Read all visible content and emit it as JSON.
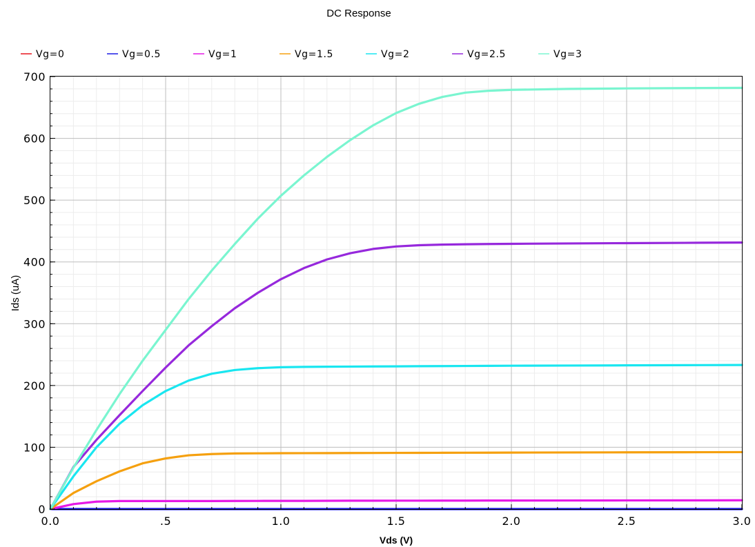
{
  "chart_data": {
    "type": "line",
    "title": "DC Response",
    "xlabel": "Vds (V)",
    "ylabel": "Ids (uA)",
    "xlim": [
      0,
      3.0
    ],
    "ylim": [
      0,
      700
    ],
    "grid": true,
    "legend_position": "top",
    "x_ticks": [
      "0.0",
      ".5",
      "1.0",
      "1.5",
      "2.0",
      "2.5",
      "3.0"
    ],
    "x_tick_values": [
      0,
      0.5,
      1.0,
      1.5,
      2.0,
      2.5,
      3.0
    ],
    "y_ticks": [
      "0",
      "100",
      "200",
      "300",
      "400",
      "500",
      "600",
      "700"
    ],
    "y_tick_values": [
      0,
      100,
      200,
      300,
      400,
      500,
      600,
      700
    ],
    "x": [
      0,
      0.1,
      0.2,
      0.3,
      0.4,
      0.5,
      0.6,
      0.7,
      0.8,
      0.9,
      1.0,
      1.1,
      1.2,
      1.3,
      1.4,
      1.5,
      1.6,
      1.7,
      1.8,
      1.9,
      2.0,
      2.25,
      2.5,
      2.75,
      3.0
    ],
    "series": [
      {
        "name": "Vg=0",
        "color": "#e8141e",
        "draw": false,
        "values": [
          0,
          0,
          0,
          0,
          0,
          0,
          0,
          0,
          0,
          0,
          0,
          0,
          0,
          0,
          0,
          0,
          0,
          0,
          0,
          0,
          0,
          0,
          0,
          0,
          0
        ]
      },
      {
        "name": "Vg=0.5",
        "color": "#1a1ae6",
        "draw": true,
        "values": [
          0,
          0,
          0,
          0,
          0,
          0,
          0,
          0,
          0,
          0,
          0,
          0,
          0,
          0,
          0,
          0,
          0,
          0,
          0,
          0,
          0,
          0,
          0,
          0,
          0
        ]
      },
      {
        "name": "Vg=1",
        "color": "#e619e6",
        "draw": true,
        "values": [
          0,
          8,
          12,
          13,
          13,
          13,
          13,
          13,
          13.1,
          13.2,
          13.3,
          13.3,
          13.4,
          13.5,
          13.5,
          13.6,
          13.6,
          13.7,
          13.7,
          13.8,
          13.8,
          13.9,
          14.0,
          14.1,
          14.2
        ]
      },
      {
        "name": "Vg=1.5",
        "color": "#f5a00f",
        "draw": true,
        "values": [
          0,
          26,
          45,
          61,
          74,
          82,
          87,
          89,
          90,
          90.2,
          90.4,
          90.5,
          90.6,
          90.7,
          90.8,
          90.9,
          91.0,
          91.1,
          91.2,
          91.3,
          91.4,
          91.6,
          91.8,
          92.0,
          92.2
        ]
      },
      {
        "name": "Vg=2",
        "color": "#19e6f0",
        "draw": true,
        "values": [
          0,
          53,
          100,
          138,
          168,
          191,
          208,
          219,
          225,
          228,
          229.6,
          230.1,
          230.4,
          230.6,
          230.8,
          231,
          231.2,
          231.4,
          231.6,
          231.8,
          232,
          232.3,
          232.6,
          232.9,
          233.2
        ]
      },
      {
        "name": "Vg=2.5",
        "color": "#9628dc",
        "draw": true,
        "values": [
          0,
          68,
          112,
          152,
          191,
          229,
          265,
          296,
          325,
          350,
          372,
          390,
          404,
          414,
          421,
          425,
          427,
          428,
          428.6,
          429,
          429.3,
          429.9,
          430.4,
          430.9,
          431.4
        ]
      },
      {
        "name": "Vg=3",
        "color": "#7af5d0",
        "draw": true,
        "values": [
          0,
          67,
          128,
          186,
          240,
          290,
          340,
          386,
          429,
          470,
          507,
          540,
          570,
          597,
          621,
          641,
          656,
          667,
          674,
          677,
          678.5,
          680,
          680.8,
          681.3,
          681.7
        ]
      }
    ]
  }
}
